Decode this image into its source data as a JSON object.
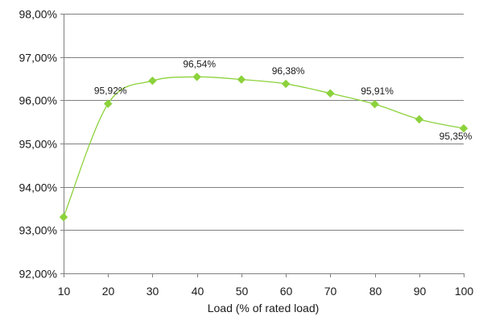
{
  "chart_data": {
    "type": "line",
    "title": "",
    "xlabel": "Load (% of rated load)",
    "ylabel": "",
    "x": [
      10,
      20,
      30,
      40,
      50,
      60,
      70,
      80,
      90,
      100
    ],
    "xlim": [
      10,
      100
    ],
    "xticks": [
      "10",
      "20",
      "30",
      "40",
      "50",
      "60",
      "70",
      "80",
      "90",
      "100"
    ],
    "ylim": [
      92,
      98
    ],
    "yticks": [
      "92,00%",
      "93,00%",
      "94,00%",
      "95,00%",
      "96,00%",
      "97,00%",
      "98,00%"
    ],
    "grid": "horizontal",
    "legend": "none",
    "series": [
      {
        "values": [
          93.3,
          95.92,
          96.45,
          96.54,
          96.48,
          96.38,
          96.16,
          95.91,
          95.56,
          95.35
        ],
        "color": "#8cd23c",
        "line_color": "#8cd23c",
        "marker": "diamond",
        "smooth": true
      }
    ],
    "data_labels": [
      {
        "x": 20,
        "text": "95,92%"
      },
      {
        "x": 40,
        "text": "96,54%"
      },
      {
        "x": 60,
        "text": "96,38%"
      },
      {
        "x": 80,
        "text": "95,91%"
      },
      {
        "x": 100,
        "text": "95,35%"
      }
    ],
    "colors": {
      "gridline": "#7f7f7f",
      "axis": "#808080",
      "text": "#1a1a1a"
    }
  }
}
